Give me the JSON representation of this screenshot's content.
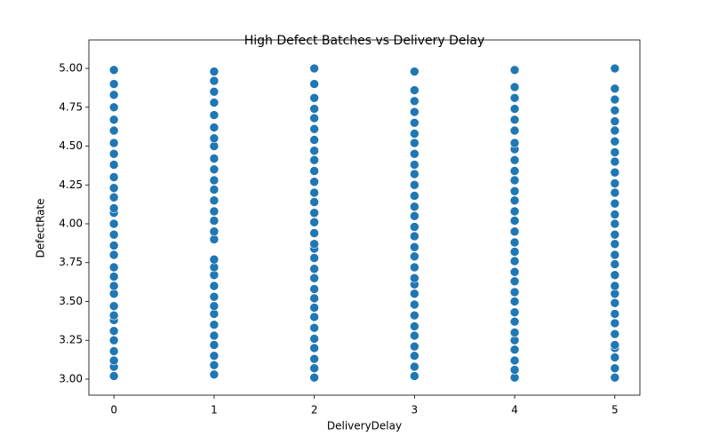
{
  "chart_data": {
    "type": "scatter",
    "title": "High Defect Batches vs Delivery Delay",
    "x_label": "DeliveryDelay",
    "y_label": "DefectRate",
    "color": "#1f77b4",
    "xlim": [
      -0.25,
      5.25
    ],
    "ylim": [
      2.897,
      5.183
    ],
    "xticks": [
      0,
      1,
      2,
      3,
      4,
      5
    ],
    "yticks": [
      {
        "value": 3,
        "label": "3.00"
      },
      {
        "value": 3.25,
        "label": "3.25"
      },
      {
        "value": 3.5,
        "label": "3.50"
      },
      {
        "value": 3.75,
        "label": "3.75"
      },
      {
        "value": 4,
        "label": "4.00"
      },
      {
        "value": 4.25,
        "label": "4.25"
      },
      {
        "value": 4.5,
        "label": "4.50"
      },
      {
        "value": 4.75,
        "label": "4.75"
      },
      {
        "value": 5,
        "label": "5.00"
      }
    ],
    "x": [
      0,
      0,
      0,
      0,
      0,
      0,
      0,
      0,
      0,
      0,
      0,
      0,
      0,
      0,
      0,
      0,
      0,
      0,
      0,
      0,
      0,
      0,
      0,
      0,
      0,
      0,
      0,
      0,
      0,
      0,
      0,
      1,
      1,
      1,
      1,
      1,
      1,
      1,
      1,
      1,
      1,
      1,
      1,
      1,
      1,
      1,
      1,
      1,
      1,
      1,
      1,
      1,
      1,
      1,
      1,
      1,
      1,
      1,
      1,
      1,
      1,
      2,
      2,
      2,
      2,
      2,
      2,
      2,
      2,
      2,
      2,
      2,
      2,
      2,
      2,
      2,
      2,
      2,
      2,
      2,
      2,
      2,
      2,
      2,
      2,
      2,
      2,
      2,
      2,
      2,
      2,
      2,
      3,
      3,
      3,
      3,
      3,
      3,
      3,
      3,
      3,
      3,
      3,
      3,
      3,
      3,
      3,
      3,
      3,
      3,
      3,
      3,
      3,
      3,
      3,
      3,
      3,
      3,
      3,
      3,
      3,
      3,
      4,
      4,
      4,
      4,
      4,
      4,
      4,
      4,
      4,
      4,
      4,
      4,
      4,
      4,
      4,
      4,
      4,
      4,
      4,
      4,
      4,
      4,
      4,
      4,
      4,
      4,
      4,
      4,
      4,
      4,
      4,
      5,
      5,
      5,
      5,
      5,
      5,
      5,
      5,
      5,
      5,
      5,
      5,
      5,
      5,
      5,
      5,
      5,
      5,
      5,
      5,
      5,
      5,
      5,
      5,
      5,
      5,
      5,
      5,
      5,
      5,
      5
    ],
    "y": [
      3.02,
      3.08,
      3.12,
      3.18,
      3.25,
      3.31,
      3.38,
      3.41,
      3.47,
      3.55,
      3.6,
      3.66,
      3.72,
      3.8,
      3.86,
      3.93,
      4.0,
      4.07,
      4.1,
      4.17,
      4.23,
      4.3,
      4.38,
      4.45,
      4.52,
      4.6,
      4.67,
      4.75,
      4.83,
      4.9,
      4.99,
      3.03,
      3.09,
      3.15,
      3.22,
      3.28,
      3.35,
      3.42,
      3.47,
      3.53,
      3.6,
      3.67,
      3.72,
      3.77,
      3.9,
      3.95,
      4.02,
      4.08,
      4.15,
      4.22,
      4.28,
      4.35,
      4.42,
      4.5,
      4.55,
      4.62,
      4.7,
      4.78,
      4.85,
      4.92,
      4.98,
      3.01,
      3.07,
      3.13,
      3.2,
      3.26,
      3.33,
      3.4,
      3.46,
      3.52,
      3.58,
      3.65,
      3.71,
      3.78,
      3.84,
      3.87,
      3.94,
      4.01,
      4.07,
      4.14,
      4.2,
      4.27,
      4.34,
      4.41,
      4.47,
      4.54,
      4.61,
      4.68,
      4.74,
      4.81,
      4.9,
      5.0,
      3.02,
      3.08,
      3.15,
      3.21,
      3.28,
      3.34,
      3.41,
      3.48,
      3.55,
      3.61,
      3.65,
      3.72,
      3.79,
      3.85,
      3.92,
      3.98,
      4.05,
      4.11,
      4.18,
      4.25,
      4.32,
      4.38,
      4.45,
      4.52,
      4.58,
      4.65,
      4.72,
      4.79,
      4.86,
      4.98,
      3.01,
      3.06,
      3.12,
      3.19,
      3.25,
      3.3,
      3.37,
      3.43,
      3.5,
      3.56,
      3.63,
      3.69,
      3.76,
      3.82,
      3.88,
      3.95,
      4.02,
      4.08,
      4.15,
      4.21,
      4.28,
      4.34,
      4.41,
      4.48,
      4.52,
      4.6,
      4.67,
      4.74,
      4.81,
      4.88,
      4.99,
      3.01,
      3.07,
      3.14,
      3.2,
      3.22,
      3.29,
      3.36,
      3.42,
      3.49,
      3.55,
      3.6,
      3.67,
      3.74,
      3.8,
      3.87,
      3.93,
      4.0,
      4.06,
      4.13,
      4.2,
      4.26,
      4.33,
      4.4,
      4.46,
      4.53,
      4.6,
      4.66,
      4.73,
      4.8,
      4.87,
      5.0
    ]
  }
}
